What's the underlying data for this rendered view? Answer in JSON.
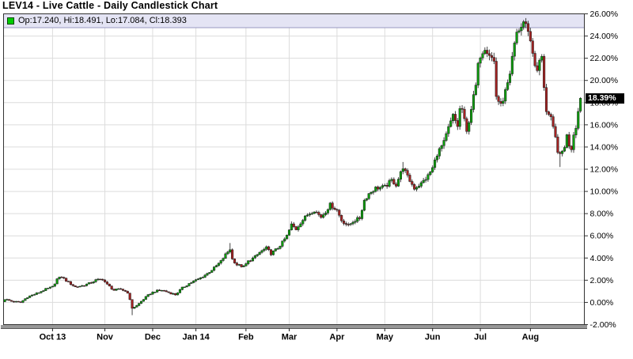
{
  "window": {
    "title": "LEV14 - Live Cattle - Daily Candlestick Chart"
  },
  "legend": {
    "text": "Op:17.240, Hi:18.491, Lo:17.084, Cl:18.393",
    "marker_color": "#00cc00"
  },
  "chart_data": {
    "type": "candlestick",
    "title": "LEV14 - Live Cattle - Daily Candlestick Chart",
    "symbol": "LEV14",
    "subject": "Live Cattle - Daily Candlestick Chart",
    "unit": "percent change",
    "grid": true,
    "y_axis": {
      "side": "right",
      "min": -2,
      "max": 26,
      "step": 2,
      "tick_labels": [
        "-2.00%",
        "0.00%",
        "2.00%",
        "4.00%",
        "6.00%",
        "8.00%",
        "10.00%",
        "12.00%",
        "14.00%",
        "16.00%",
        "18.00%",
        "20.00%",
        "22.00%",
        "24.00%",
        "26.00%"
      ]
    },
    "x_axis": {
      "tick_labels": [
        {
          "label": "Oct 13",
          "day": 21
        },
        {
          "label": "Nov",
          "day": 44
        },
        {
          "label": "Dec",
          "day": 65
        },
        {
          "label": "Jan 14",
          "day": 84
        },
        {
          "label": "Feb",
          "day": 106
        },
        {
          "label": "Mar",
          "day": 125
        },
        {
          "label": "Apr",
          "day": 146
        },
        {
          "label": "May",
          "day": 167
        },
        {
          "label": "Jun",
          "day": 188
        },
        {
          "label": "Jul",
          "day": 209
        },
        {
          "label": "Aug",
          "day": 231
        }
      ]
    },
    "total_days": 254,
    "last_price_label": "18.39%",
    "last_candle": {
      "open": 17.24,
      "high": 18.491,
      "low": 17.084,
      "close": 18.393
    },
    "close_path": [
      [
        0,
        0.3
      ],
      [
        3,
        0.1
      ],
      [
        7,
        0.0
      ],
      [
        10,
        0.5
      ],
      [
        14,
        0.8
      ],
      [
        17,
        1.1
      ],
      [
        21,
        1.4
      ],
      [
        23,
        2.1
      ],
      [
        25,
        2.3
      ],
      [
        28,
        1.8
      ],
      [
        31,
        1.4
      ],
      [
        34,
        1.5
      ],
      [
        37,
        1.7
      ],
      [
        40,
        2.0
      ],
      [
        43,
        2.1
      ],
      [
        45,
        1.6
      ],
      [
        48,
        1.1
      ],
      [
        51,
        1.2
      ],
      [
        54,
        0.9
      ],
      [
        56,
        -0.5
      ],
      [
        58,
        -0.3
      ],
      [
        61,
        0.3
      ],
      [
        64,
        0.8
      ],
      [
        66,
        1.0
      ],
      [
        69,
        1.1
      ],
      [
        72,
        0.9
      ],
      [
        75,
        0.7
      ],
      [
        78,
        1.3
      ],
      [
        81,
        1.7
      ],
      [
        84,
        2.0
      ],
      [
        86,
        2.2
      ],
      [
        89,
        2.6
      ],
      [
        92,
        3.1
      ],
      [
        95,
        3.7
      ],
      [
        97,
        4.3
      ],
      [
        99,
        4.8
      ],
      [
        100,
        3.9
      ],
      [
        102,
        3.4
      ],
      [
        105,
        3.2
      ],
      [
        107,
        3.7
      ],
      [
        110,
        4.1
      ],
      [
        112,
        4.5
      ],
      [
        115,
        4.9
      ],
      [
        117,
        4.4
      ],
      [
        120,
        4.9
      ],
      [
        122,
        5.4
      ],
      [
        124,
        6.0
      ],
      [
        126,
        7.0
      ],
      [
        128,
        6.6
      ],
      [
        130,
        7.2
      ],
      [
        133,
        7.9
      ],
      [
        136,
        8.3
      ],
      [
        139,
        7.7
      ],
      [
        141,
        8.2
      ],
      [
        143,
        8.8
      ],
      [
        146,
        8.3
      ],
      [
        148,
        7.4
      ],
      [
        151,
        6.9
      ],
      [
        153,
        7.3
      ],
      [
        156,
        7.6
      ],
      [
        158,
        9.2
      ],
      [
        160,
        9.8
      ],
      [
        163,
        10.3
      ],
      [
        167,
        10.4
      ],
      [
        170,
        11.0
      ],
      [
        172,
        10.6
      ],
      [
        175,
        12.2
      ],
      [
        177,
        11.3
      ],
      [
        180,
        10.3
      ],
      [
        183,
        10.7
      ],
      [
        186,
        11.4
      ],
      [
        188,
        12.1
      ],
      [
        190,
        13.4
      ],
      [
        193,
        14.4
      ],
      [
        195,
        15.7
      ],
      [
        197,
        16.8
      ],
      [
        199,
        15.9
      ],
      [
        200,
        17.4
      ],
      [
        201,
        17.4
      ],
      [
        203,
        15.3
      ],
      [
        205,
        17.5
      ],
      [
        207,
        19.5
      ],
      [
        208,
        21.3
      ],
      [
        209,
        22.3
      ],
      [
        211,
        23.0
      ],
      [
        213,
        22.4
      ],
      [
        215,
        21.7
      ],
      [
        216,
        18.6
      ],
      [
        218,
        17.7
      ],
      [
        220,
        19.0
      ],
      [
        222,
        20.3
      ],
      [
        223,
        22.0
      ],
      [
        225,
        24.3
      ],
      [
        227,
        24.8
      ],
      [
        228,
        25.3
      ],
      [
        230,
        24.6
      ],
      [
        231,
        23.5
      ],
      [
        233,
        21.5
      ],
      [
        234,
        20.7
      ],
      [
        235,
        21.8
      ],
      [
        236,
        22.0
      ],
      [
        237,
        19.5
      ],
      [
        238,
        17.3
      ],
      [
        240,
        16.5
      ],
      [
        242,
        14.8
      ],
      [
        243,
        13.7
      ],
      [
        244,
        13.2
      ],
      [
        245,
        13.6
      ],
      [
        246,
        14.1
      ],
      [
        247,
        15.0
      ],
      [
        248,
        14.2
      ],
      [
        249,
        13.9
      ],
      [
        250,
        15.2
      ],
      [
        251,
        15.9
      ],
      [
        252,
        17.2
      ],
      [
        253,
        18.393
      ]
    ],
    "wick_overrides": {
      "56": {
        "low": -1.15
      },
      "99": {
        "high": 5.35
      },
      "126": {
        "high": 7.3
      },
      "175": {
        "high": 12.65
      },
      "228": {
        "high": 25.45
      },
      "244": {
        "low": 12.2
      }
    },
    "colors": {
      "up": "#0da00d",
      "down": "#a42222",
      "body_stroke": "#1a1a1a",
      "wick": "#444444",
      "grid": "#dcdcdc",
      "frame": "#333333",
      "legend_band": "#e4e4f4",
      "legend_band_border": "#9898c0",
      "axis_bar": "#989898",
      "axis_bar_edge": "#5a5a5a",
      "tag_bg": "#000000",
      "tag_text": "#ffffff",
      "background": "#ffffff"
    }
  }
}
